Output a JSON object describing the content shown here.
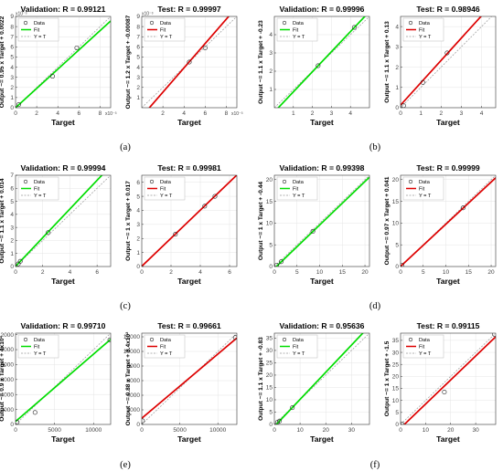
{
  "chart_data": [
    {
      "type": "scatter",
      "panel": "(a)",
      "title": "Validation: R = 0.99121",
      "xlabel": "Target",
      "ylabel": "Output ~= 0.95 x Target + 0.0022",
      "x_multiplier": "x10⁻³",
      "y_multiplier": "x10⁻³",
      "xlim": [
        0,
        9
      ],
      "ylim": [
        0,
        9
      ],
      "xticks": [
        0,
        2,
        4,
        6,
        8
      ],
      "yticks": [
        0,
        1,
        2,
        3,
        4,
        5,
        6,
        7,
        8,
        9
      ],
      "points": [
        {
          "x": 0.3,
          "y": 0.3
        },
        {
          "x": 3.5,
          "y": 3.1
        },
        {
          "x": 5.8,
          "y": 5.9
        }
      ],
      "fit": {
        "slope": 0.95,
        "intercept": 0.0022
      },
      "legend": [
        "Data",
        "Fit",
        "Y = T"
      ],
      "fit_color": "#00dd00"
    },
    {
      "type": "scatter",
      "panel": "(a)",
      "title": "Test: R = 0.99997",
      "xlabel": "Target",
      "ylabel": "Output ~= 1.2 x Target + -0.00087",
      "x_multiplier": "x10⁻³",
      "y_multiplier": "x10⁻³",
      "xlim": [
        0,
        9
      ],
      "ylim": [
        0,
        9
      ],
      "xticks": [
        2,
        4,
        6,
        8
      ],
      "yticks": [
        1,
        2,
        3,
        4,
        5,
        6,
        7,
        8,
        9
      ],
      "points": [
        {
          "x": 4.5,
          "y": 4.5
        },
        {
          "x": 6.0,
          "y": 5.9
        }
      ],
      "fit": {
        "slope": 1.2,
        "intercept": -0.87
      },
      "legend": [
        "Data",
        "Fit",
        "Y = T"
      ],
      "fit_color": "#dd0000"
    },
    {
      "type": "scatter",
      "panel": "(b)",
      "title": "Validation: R = 0.99996",
      "xlabel": "Target",
      "ylabel": "Output ~= 1.1 x Target + -0.23",
      "xlim": [
        0,
        5
      ],
      "ylim": [
        0,
        5
      ],
      "xticks": [
        1,
        2,
        3,
        4
      ],
      "yticks": [
        1,
        2,
        3,
        4
      ],
      "points": [
        {
          "x": 2.3,
          "y": 2.3
        },
        {
          "x": 4.2,
          "y": 4.4
        }
      ],
      "fit": {
        "slope": 1.1,
        "intercept": -0.23
      },
      "legend": [
        "Data",
        "Fit",
        "Y = T"
      ],
      "fit_color": "#00dd00"
    },
    {
      "type": "scatter",
      "panel": "(b)",
      "title": "Test: R = 0.98946",
      "xlabel": "Target",
      "ylabel": "Output ~= 1.1 x Target + 0.13",
      "xlim": [
        0,
        4.7
      ],
      "ylim": [
        0,
        4.5
      ],
      "xticks": [
        0,
        1,
        2,
        3,
        4
      ],
      "yticks": [
        0,
        1,
        2,
        3,
        4
      ],
      "points": [
        {
          "x": 0.15,
          "y": 0.1
        },
        {
          "x": 1.1,
          "y": 1.25
        },
        {
          "x": 2.3,
          "y": 2.7
        }
      ],
      "fit": {
        "slope": 1.1,
        "intercept": 0.13
      },
      "legend": [
        "Data",
        "Fit",
        "Y = T"
      ],
      "fit_color": "#dd0000"
    },
    {
      "type": "scatter",
      "panel": "(c)",
      "title": "Validation: R = 0.99994",
      "xlabel": "Target",
      "ylabel": "Output ~= 1.1 x Target + 0.014",
      "xlim": [
        0,
        7
      ],
      "ylim": [
        0,
        7
      ],
      "xticks": [
        0,
        2,
        4,
        6
      ],
      "yticks": [
        0,
        1,
        2,
        3,
        4,
        5,
        6,
        7
      ],
      "points": [
        {
          "x": 0.2,
          "y": 0.2
        },
        {
          "x": 0.35,
          "y": 0.4
        },
        {
          "x": 2.4,
          "y": 2.6
        }
      ],
      "fit": {
        "slope": 1.1,
        "intercept": 0.014
      },
      "legend": [
        "Data",
        "Fit",
        "Y = T"
      ],
      "fit_color": "#00dd00"
    },
    {
      "type": "scatter",
      "panel": "(c)",
      "title": "Test: R = 0.99981",
      "xlabel": "Target",
      "ylabel": "Output ~= 1 x Target + 0.017",
      "xlim": [
        0,
        6.5
      ],
      "ylim": [
        0,
        6.5
      ],
      "xticks": [
        0,
        2,
        4,
        6
      ],
      "yticks": [
        0,
        1,
        2,
        3,
        4,
        5,
        6
      ],
      "points": [
        {
          "x": 2.3,
          "y": 2.3
        },
        {
          "x": 4.3,
          "y": 4.3
        },
        {
          "x": 5.0,
          "y": 5.0
        }
      ],
      "fit": {
        "slope": 1.0,
        "intercept": 0.017
      },
      "legend": [
        "Data",
        "Fit",
        "Y = T"
      ],
      "fit_color": "#dd0000"
    },
    {
      "type": "scatter",
      "panel": "(d)",
      "title": "Validation: R = 0.99398",
      "xlabel": "Target",
      "ylabel": "Output ~= 1 x Target + -0.44",
      "xlim": [
        0,
        21
      ],
      "ylim": [
        0,
        21
      ],
      "xticks": [
        0,
        5,
        10,
        15,
        20
      ],
      "yticks": [
        0,
        5,
        10,
        15,
        20
      ],
      "points": [
        {
          "x": 0.5,
          "y": 0.3
        },
        {
          "x": 1.5,
          "y": 1.1
        },
        {
          "x": 8.5,
          "y": 8.1
        }
      ],
      "fit": {
        "slope": 1.0,
        "intercept": -0.44
      },
      "legend": [
        "Data",
        "Fit",
        "Y = T"
      ],
      "fit_color": "#00dd00"
    },
    {
      "type": "scatter",
      "panel": "(d)",
      "title": "Test: R = 0.99999",
      "xlabel": "Target",
      "ylabel": "Output ~= 0.97 x Target + 0.041",
      "xlim": [
        0,
        21
      ],
      "ylim": [
        0,
        21
      ],
      "xticks": [
        0,
        5,
        10,
        15,
        20
      ],
      "yticks": [
        0,
        5,
        10,
        15,
        20
      ],
      "points": [
        {
          "x": 0.3,
          "y": 0.3
        },
        {
          "x": 13.8,
          "y": 13.5
        }
      ],
      "fit": {
        "slope": 0.97,
        "intercept": 0.041
      },
      "legend": [
        "Data",
        "Fit",
        "Y = T"
      ],
      "fit_color": "#dd0000"
    },
    {
      "type": "scatter",
      "panel": "(e)",
      "title": "Validation: R = 0.99710",
      "xlabel": "Target",
      "ylabel": "Output ~= 0.9 x Target + 4x10²",
      "xlim": [
        0,
        12200
      ],
      "ylim": [
        0,
        12200
      ],
      "xticks": [
        0,
        5000,
        10000
      ],
      "yticks": [
        0,
        2000,
        4000,
        6000,
        8000,
        10000,
        12000
      ],
      "points": [
        {
          "x": 200,
          "y": 300
        },
        {
          "x": 2500,
          "y": 1600
        },
        {
          "x": 12100,
          "y": 11300
        }
      ],
      "fit": {
        "slope": 0.9,
        "intercept": 400
      },
      "legend": [
        "Data",
        "Fit",
        "Y = T"
      ],
      "fit_color": "#00dd00"
    },
    {
      "type": "scatter",
      "panel": "(e)",
      "title": "Test: R = 0.99661",
      "xlabel": "Target",
      "ylabel": "Output ~= 0.88 x Target + 8.4x10²",
      "xlim": [
        0,
        12500
      ],
      "ylim": [
        0,
        12500
      ],
      "xticks": [
        0,
        5000,
        10000
      ],
      "yticks": [
        0,
        2000,
        4000,
        6000,
        8000,
        10000,
        12000
      ],
      "points": [
        {
          "x": 100,
          "y": 500
        },
        {
          "x": 12300,
          "y": 11900
        }
      ],
      "fit": {
        "slope": 0.88,
        "intercept": 840
      },
      "legend": [
        "Data",
        "Fit",
        "Y = T"
      ],
      "fit_color": "#dd0000"
    },
    {
      "type": "scatter",
      "panel": "(f)",
      "title": "Validation: R = 0.95636",
      "xlabel": "Target",
      "ylabel": "Output ~= 1.1 x Target + -0.83",
      "xlim": [
        0,
        37
      ],
      "ylim": [
        0,
        37
      ],
      "xticks": [
        0,
        10,
        20,
        30
      ],
      "yticks": [
        0,
        5,
        10,
        15,
        20,
        25,
        30,
        35
      ],
      "points": [
        {
          "x": 1.2,
          "y": 0.9
        },
        {
          "x": 2.0,
          "y": 1.4
        },
        {
          "x": 7.0,
          "y": 6.8
        }
      ],
      "fit": {
        "slope": 1.1,
        "intercept": -0.83
      },
      "legend": [
        "Data",
        "Fit",
        "Y = T"
      ],
      "fit_color": "#00dd00"
    },
    {
      "type": "scatter",
      "panel": "(f)",
      "title": "Test: R = 0.99115",
      "xlabel": "Target",
      "ylabel": "Output ~= 1 x Target + -1.5",
      "xlim": [
        0,
        38
      ],
      "ylim": [
        0,
        38
      ],
      "xticks": [
        0,
        10,
        20,
        30
      ],
      "yticks": [
        0,
        5,
        10,
        15,
        20,
        25,
        30,
        35
      ],
      "points": [
        {
          "x": 0.5,
          "y": 0.2
        },
        {
          "x": 17.5,
          "y": 13.5
        },
        {
          "x": 37.5,
          "y": 37.5
        }
      ],
      "fit": {
        "slope": 1.0,
        "intercept": -1.5
      },
      "legend": [
        "Data",
        "Fit",
        "Y = T"
      ],
      "fit_color": "#dd0000"
    }
  ],
  "captions": [
    "(a)",
    "(b)",
    "(c)",
    "(d)",
    "(e)",
    "(f)"
  ]
}
